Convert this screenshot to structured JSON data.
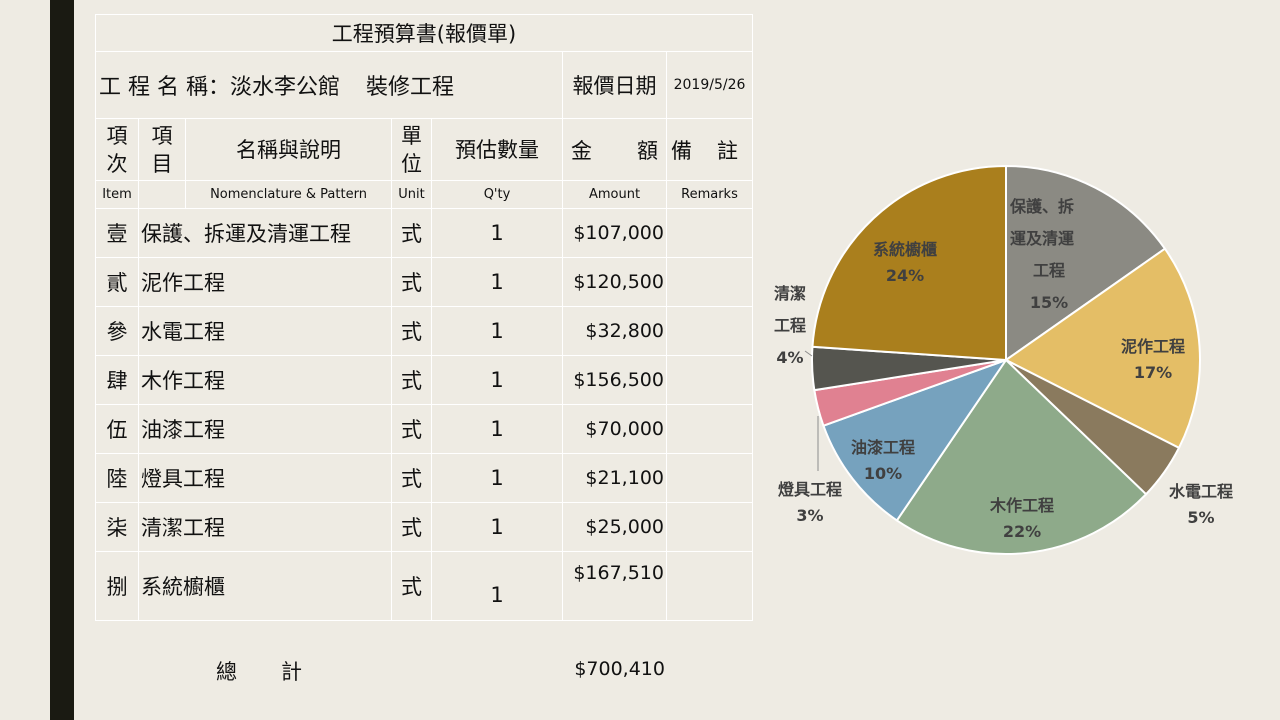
{
  "document": {
    "title": "工程預算書(報價單)",
    "project_label": "工 程 名 稱：淡水李公館",
    "project_suffix": "裝修工程",
    "quote_date_label": "報價日期",
    "quote_date": "2019/5/26"
  },
  "headers": {
    "index": [
      "項",
      "次"
    ],
    "item": [
      "項",
      "目"
    ],
    "name": "名稱與說明",
    "unit": [
      "單",
      "位"
    ],
    "qty": "預估數量",
    "amount": [
      "金",
      "額"
    ],
    "remarks": [
      "備",
      "註"
    ]
  },
  "headers_en": {
    "index": "Item",
    "name": "Nomenclature & Pattern",
    "unit": "Unit",
    "qty": "Q'ty",
    "amount": "Amount",
    "remarks": "Remarks"
  },
  "rows": [
    {
      "index": "壹",
      "name": "保護、拆運及清運工程",
      "unit": "式",
      "qty": "1",
      "amount": "$107,000"
    },
    {
      "index": "貳",
      "name": "泥作工程",
      "unit": "式",
      "qty": "1",
      "amount": "$120,500"
    },
    {
      "index": "參",
      "name": "水電工程",
      "unit": "式",
      "qty": "1",
      "amount": "$32,800"
    },
    {
      "index": "肆",
      "name": "木作工程",
      "unit": "式",
      "qty": "1",
      "amount": "$156,500"
    },
    {
      "index": "伍",
      "name": "油漆工程",
      "unit": "式",
      "qty": "1",
      "amount": "$70,000"
    },
    {
      "index": "陸",
      "name": "燈具工程",
      "unit": "式",
      "qty": "1",
      "amount": "$21,100"
    },
    {
      "index": "柒",
      "name": "清潔工程",
      "unit": "式",
      "qty": "1",
      "amount": "$25,000"
    },
    {
      "index": "捌",
      "name": "系統櫥櫃",
      "unit": "式",
      "qty": "1",
      "amount": "$167,510"
    }
  ],
  "total": {
    "label": [
      "總",
      "計"
    ],
    "value": "$700,410"
  },
  "chart_data": {
    "type": "pie",
    "title": "",
    "slices": [
      {
        "label": [
          "保護、拆",
          "運及清運",
          "工程"
        ],
        "value": 107000,
        "pct": "15%",
        "color": "#8B8A83"
      },
      {
        "label": [
          "泥作工程"
        ],
        "value": 120500,
        "pct": "17%",
        "color": "#E4BE66"
      },
      {
        "label": [
          "水電工程"
        ],
        "value": 32800,
        "pct": "5%",
        "color": "#8A7A5E"
      },
      {
        "label": [
          "木作工程"
        ],
        "value": 156500,
        "pct": "22%",
        "color": "#8EAA8A"
      },
      {
        "label": [
          "油漆工程"
        ],
        "value": 70000,
        "pct": "10%",
        "color": "#76A2BE"
      },
      {
        "label": [
          "燈具工程"
        ],
        "value": 21100,
        "pct": "3%",
        "color": "#E08191"
      },
      {
        "label": [
          "清潔",
          "工程"
        ],
        "value": 25000,
        "pct": "4%",
        "color": "#55554F"
      },
      {
        "label": [
          "系統櫥櫃"
        ],
        "value": 167510,
        "pct": "24%",
        "color": "#AA7F1D"
      }
    ]
  }
}
